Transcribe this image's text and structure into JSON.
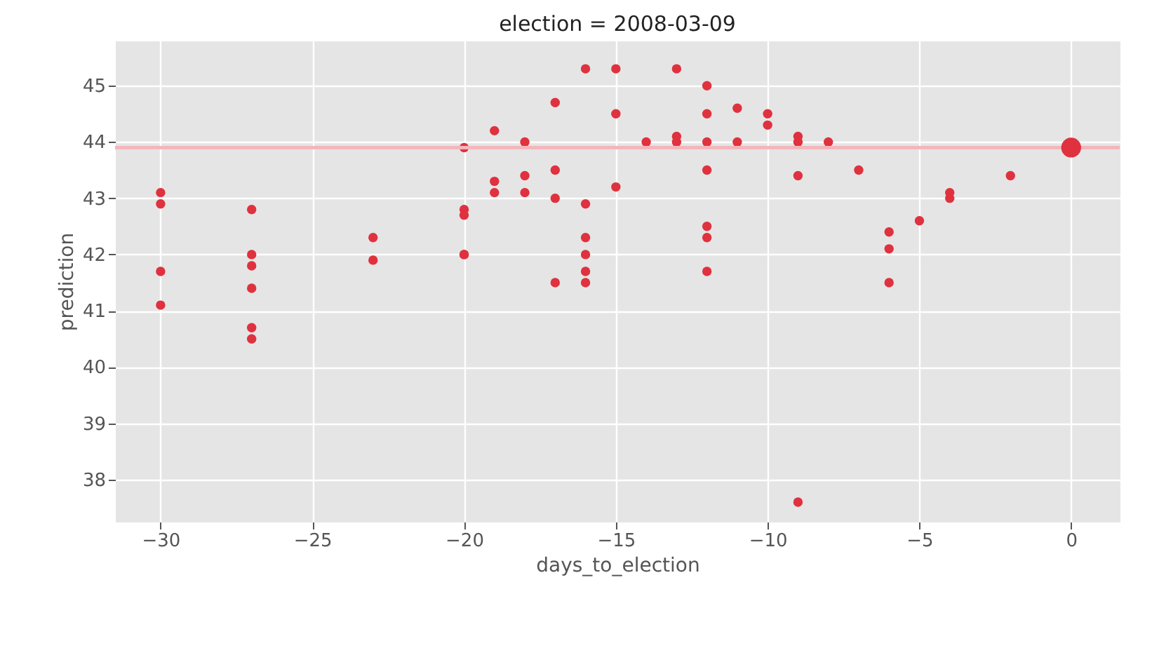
{
  "chart_data": {
    "type": "scatter",
    "title": "election = 2008-03-09",
    "xlabel": "days_to_election",
    "ylabel": "prediction",
    "xlim": [
      -31.5,
      1.6
    ],
    "ylim": [
      37.25,
      45.8
    ],
    "xticks": [
      {
        "value": -30,
        "label": "−30"
      },
      {
        "value": -25,
        "label": "−25"
      },
      {
        "value": -20,
        "label": "−20"
      },
      {
        "value": -15,
        "label": "−15"
      },
      {
        "value": -10,
        "label": "−10"
      },
      {
        "value": -5,
        "label": "−5"
      },
      0
    ],
    "yticks": [
      38,
      39,
      40,
      41,
      42,
      43,
      44,
      45
    ],
    "grid": true,
    "ref_lines": [
      {
        "axis": "y",
        "value": 43.9,
        "color": "#f4b6bc"
      }
    ],
    "series": [
      {
        "color": "#e0313e",
        "x": [
          -30,
          -30,
          -30,
          -30,
          -27,
          -27,
          -27,
          -27,
          -27,
          -27,
          -23,
          -23,
          -20,
          -20,
          -20,
          -20,
          -20,
          -19,
          -19,
          -19,
          -18,
          -18,
          -18,
          -17,
          -17,
          -17,
          -17,
          -16,
          -16,
          -16,
          -16,
          -16,
          -16,
          -15,
          -15,
          -15,
          -14,
          -13,
          -13,
          -13,
          -12,
          -12,
          -12,
          -12,
          -12,
          -12,
          -12,
          -11,
          -11,
          -10,
          -10,
          -9,
          -9,
          -9,
          -9,
          -8,
          -7,
          -6,
          -6,
          -6,
          -5,
          -4,
          -4,
          -2
        ],
        "values": [
          43.1,
          42.9,
          41.7,
          41.1,
          42.8,
          42.0,
          41.8,
          41.4,
          40.7,
          40.5,
          42.3,
          41.9,
          43.9,
          42.8,
          42.7,
          42.0,
          42.0,
          44.2,
          43.3,
          43.1,
          44.0,
          43.4,
          43.1,
          44.7,
          43.5,
          43.0,
          41.5,
          45.3,
          42.9,
          42.3,
          42.0,
          41.7,
          41.5,
          45.3,
          44.5,
          43.2,
          44.0,
          45.3,
          44.1,
          44.0,
          45.0,
          44.5,
          44.0,
          43.5,
          42.5,
          42.3,
          41.7,
          44.6,
          44.0,
          44.5,
          44.3,
          44.1,
          44.0,
          43.4,
          37.6,
          44.0,
          43.5,
          42.4,
          42.1,
          41.5,
          42.6,
          43.1,
          43.0,
          43.4
        ]
      },
      {
        "type": "bubble",
        "color": "#e0313e",
        "x": [
          0
        ],
        "values": [
          43.9
        ],
        "sizes": [
          1
        ]
      }
    ]
  }
}
